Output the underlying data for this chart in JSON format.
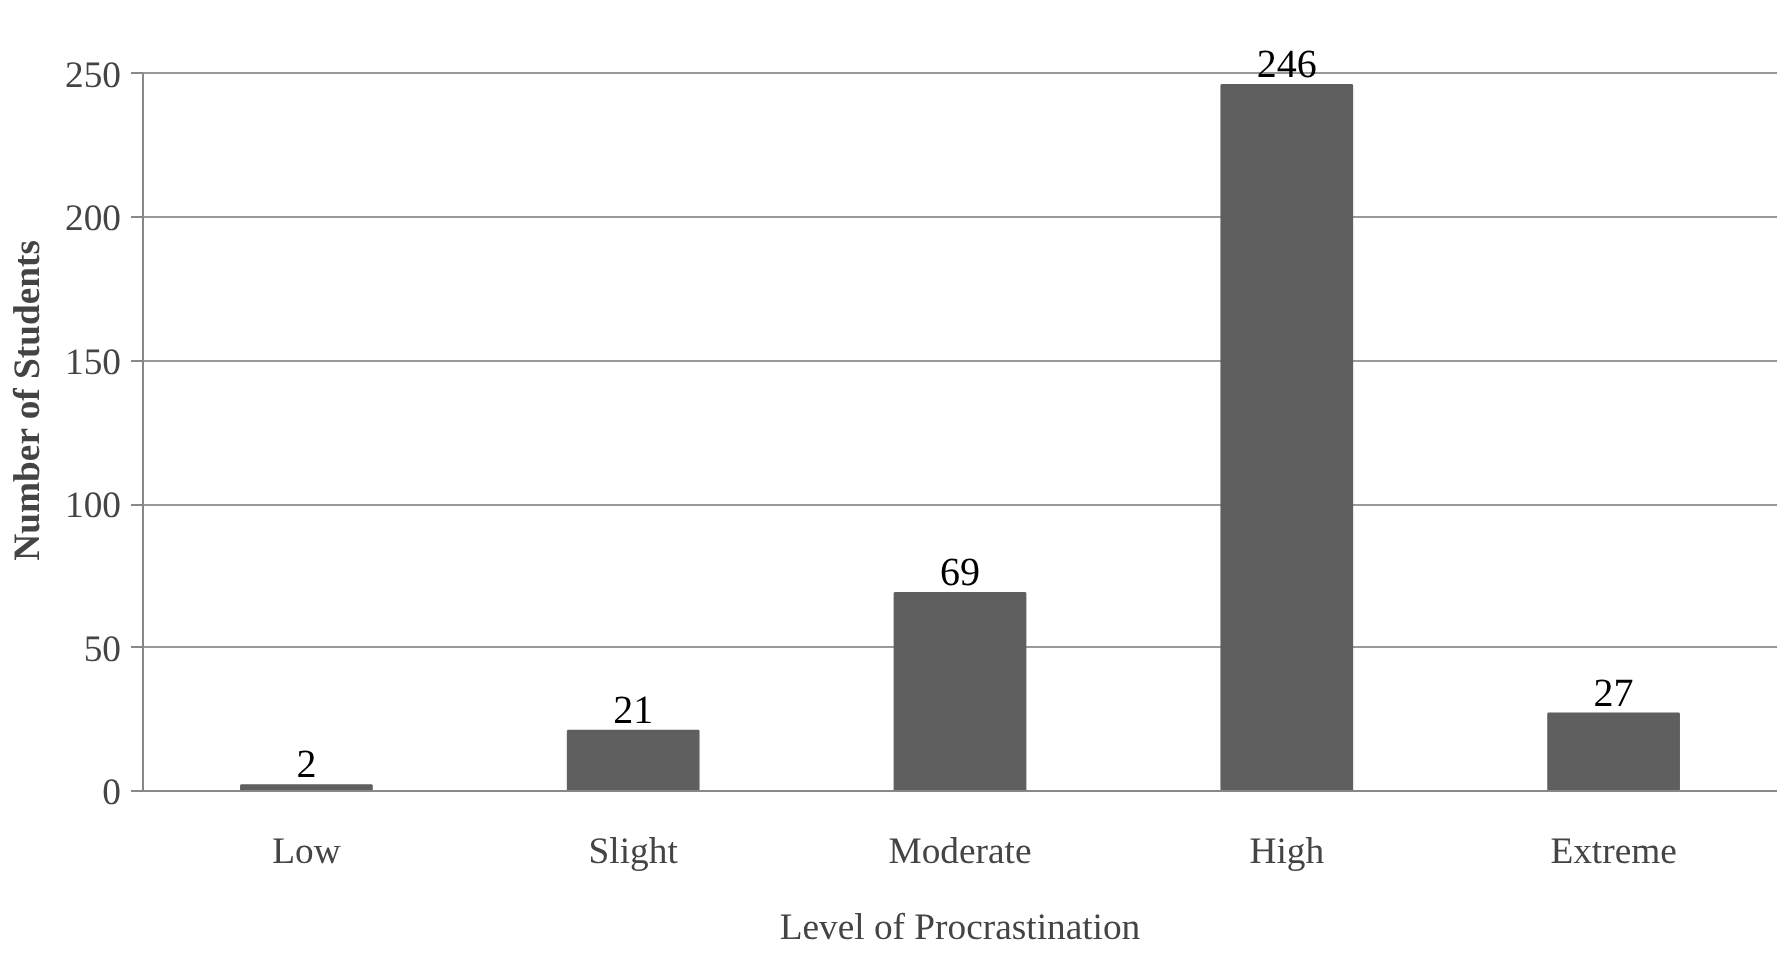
{
  "chart_data": {
    "type": "bar",
    "xlabel": "Level of Procrastination",
    "ylabel": "Number of Students",
    "categories": [
      "Low",
      "Slight",
      "Moderate",
      "High",
      "Extreme"
    ],
    "values": [
      2,
      21,
      69,
      246,
      27
    ],
    "color": "#5f5f5f",
    "ylim": [
      0,
      250
    ],
    "yticks": [
      0,
      50,
      100,
      150,
      200,
      250
    ],
    "grid": "y",
    "data_labels": true
  }
}
